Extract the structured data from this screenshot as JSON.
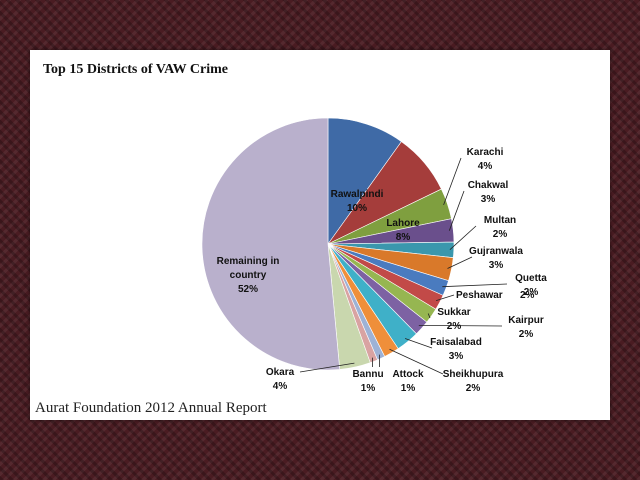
{
  "chart_data": {
    "type": "pie",
    "title": "Top 15 Districts of VAW Crime",
    "slices": [
      {
        "label": "Rawalpindi",
        "pct_label": "10%",
        "value": 10,
        "color": "#3f6aa6"
      },
      {
        "label": "Lahore",
        "pct_label": "8%",
        "value": 8,
        "color": "#a53d3b"
      },
      {
        "label": "Karachi",
        "pct_label": "4%",
        "value": 4,
        "color": "#7f9f3f"
      },
      {
        "label": "Chakwal",
        "pct_label": "3%",
        "value": 3,
        "color": "#6a4f8c"
      },
      {
        "label": "Multan",
        "pct_label": "2%",
        "value": 2,
        "color": "#3a97ad"
      },
      {
        "label": "Gujranwala",
        "pct_label": "3%",
        "value": 3,
        "color": "#d9792a"
      },
      {
        "label": "Quetta",
        "pct_label": "2%",
        "value": 2,
        "color": "#4a7bbf"
      },
      {
        "label": "Peshawar",
        "pct_label": "2%",
        "value": 2,
        "color": "#c24a48"
      },
      {
        "label": "Sukkar",
        "pct_label": "2%",
        "value": 2,
        "color": "#96b651"
      },
      {
        "label": "Kairpur",
        "pct_label": "2%",
        "value": 2,
        "color": "#7d62a3"
      },
      {
        "label": "Faisalabad",
        "pct_label": "3%",
        "value": 3,
        "color": "#3fb0c8"
      },
      {
        "label": "Sheikhupura",
        "pct_label": "2%",
        "value": 2,
        "color": "#ef8f3a"
      },
      {
        "label": "Attock",
        "pct_label": "1%",
        "value": 1,
        "color": "#9eb2d6"
      },
      {
        "label": "Bannu",
        "pct_label": "1%",
        "value": 1,
        "color": "#d9a3a2"
      },
      {
        "label": "Okara",
        "pct_label": "4%",
        "value": 4,
        "color": "#c9d7ae"
      },
      {
        "label": "Remaining in country",
        "pct_label": "52%",
        "value": 52,
        "color": "#b9b0cc"
      }
    ],
    "legend": "none"
  },
  "caption": "Aurat Foundation 2012 Annual Report"
}
